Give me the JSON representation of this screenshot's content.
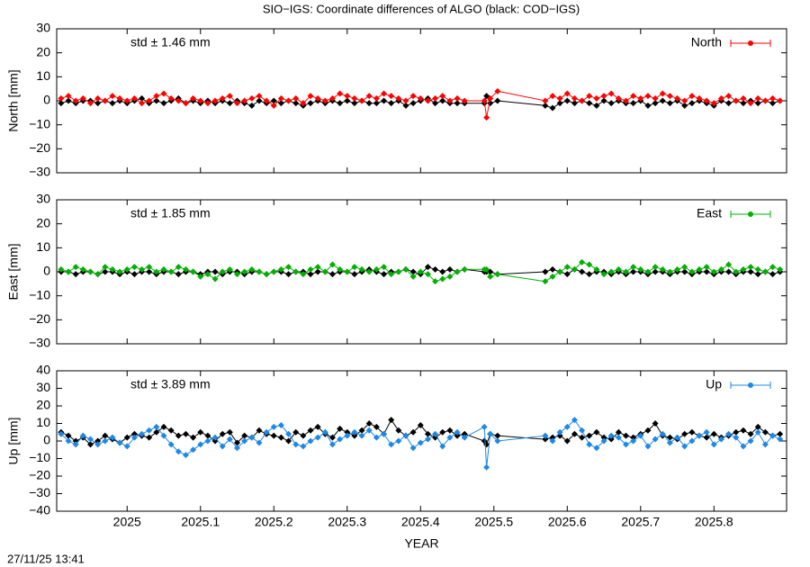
{
  "title": "SIO−IGS: Coordinate differences of ALGO (black: COD−IGS)",
  "timestamp": "27/11/25 13:41",
  "chart_data": [
    {
      "type": "line",
      "ylabel": "North [mm]",
      "annotation": "std ± 1.46 mm",
      "xlim": [
        2024.904,
        2025.899
      ],
      "xticks": [
        2025,
        2025.1,
        2025.2,
        2025.3,
        2025.4,
        2025.5,
        2025.6,
        2025.7,
        2025.8
      ],
      "show_xtick_labels": false,
      "ylim": [
        -30,
        30
      ],
      "yticks": [
        {
          "value": -30,
          "label": "−30"
        },
        {
          "value": -20,
          "label": "−20"
        },
        {
          "value": -10,
          "label": "−10"
        },
        0,
        10,
        20,
        30
      ],
      "x": [
        2024.91,
        2024.92,
        2024.93,
        2024.94,
        2024.95,
        2024.96,
        2024.97,
        2024.98,
        2024.99,
        2025,
        2025.01,
        2025.02,
        2025.03,
        2025.04,
        2025.05,
        2025.06,
        2025.07,
        2025.08,
        2025.09,
        2025.1,
        2025.11,
        2025.12,
        2025.13,
        2025.14,
        2025.15,
        2025.16,
        2025.17,
        2025.18,
        2025.19,
        2025.2,
        2025.21,
        2025.22,
        2025.23,
        2025.24,
        2025.25,
        2025.26,
        2025.27,
        2025.28,
        2025.29,
        2025.3,
        2025.31,
        2025.32,
        2025.33,
        2025.34,
        2025.35,
        2025.36,
        2025.37,
        2025.38,
        2025.39,
        2025.4,
        2025.41,
        2025.42,
        2025.43,
        2025.44,
        2025.45,
        2025.46,
        2025.487,
        2025.49,
        2025.495,
        2025.505,
        2025.57,
        2025.58,
        2025.59,
        2025.6,
        2025.61,
        2025.62,
        2025.63,
        2025.64,
        2025.65,
        2025.66,
        2025.67,
        2025.68,
        2025.69,
        2025.7,
        2025.71,
        2025.72,
        2025.73,
        2025.74,
        2025.75,
        2025.76,
        2025.77,
        2025.78,
        2025.79,
        2025.8,
        2025.81,
        2025.82,
        2025.83,
        2025.84,
        2025.85,
        2025.86,
        2025.87,
        2025.88,
        2025.89
      ],
      "series": [
        {
          "color": "#000000",
          "values": [
            -1,
            0,
            -1,
            0,
            0,
            -1,
            0,
            -1,
            0,
            -1,
            0,
            1,
            -1,
            0,
            -1,
            0,
            1,
            -1,
            0,
            -1,
            0,
            -1,
            0,
            -1,
            0,
            -1,
            -2,
            0,
            -1,
            0,
            -1,
            0,
            -1,
            -2,
            -1,
            0,
            -1,
            0,
            -1,
            0,
            -1,
            0,
            -1,
            -1,
            0,
            -1,
            0,
            -2,
            -1,
            0,
            1,
            -1,
            0,
            -1,
            -1,
            -1,
            -1,
            2,
            -1,
            0,
            -2,
            -3,
            -1,
            0,
            -1,
            0,
            -1,
            -2,
            0,
            -1,
            0,
            -1,
            -1,
            0,
            -2,
            -1,
            0,
            -1,
            0,
            -2,
            -1,
            0,
            -1,
            -2,
            0,
            -1,
            0,
            -1,
            0,
            -1,
            0,
            -1,
            0
          ]
        },
        {
          "name": "North",
          "color": "#ff0000",
          "values": [
            1,
            2,
            0,
            1,
            -1,
            1,
            0,
            2,
            1,
            0,
            1,
            -1,
            0,
            2,
            3,
            1,
            0,
            -1,
            1,
            0,
            -1,
            0,
            1,
            2,
            -1,
            0,
            1,
            2,
            0,
            -2,
            1,
            0,
            1,
            -1,
            2,
            1,
            0,
            1,
            3,
            2,
            1,
            0,
            2,
            1,
            3,
            2,
            1,
            0,
            2,
            1,
            0,
            1,
            2,
            0,
            1,
            0,
            0,
            -7,
            1,
            4,
            0,
            2,
            1,
            3,
            1,
            0,
            2,
            1,
            2,
            3,
            1,
            0,
            2,
            1,
            2,
            1,
            3,
            2,
            1,
            0,
            2,
            1,
            0,
            -1,
            1,
            2,
            0,
            1,
            -1,
            1,
            0,
            1,
            0
          ]
        }
      ]
    },
    {
      "type": "line",
      "ylabel": "East [mm]",
      "annotation": "std ± 1.85 mm",
      "xlim": [
        2024.904,
        2025.899
      ],
      "xticks": [
        2025,
        2025.1,
        2025.2,
        2025.3,
        2025.4,
        2025.5,
        2025.6,
        2025.7,
        2025.8
      ],
      "show_xtick_labels": false,
      "ylim": [
        -30,
        30
      ],
      "yticks": [
        {
          "value": -30,
          "label": "−30"
        },
        {
          "value": -20,
          "label": "−20"
        },
        {
          "value": -10,
          "label": "−10"
        },
        0,
        10,
        20,
        30
      ],
      "x": [
        2024.91,
        2024.92,
        2024.93,
        2024.94,
        2024.95,
        2024.96,
        2024.97,
        2024.98,
        2024.99,
        2025,
        2025.01,
        2025.02,
        2025.03,
        2025.04,
        2025.05,
        2025.06,
        2025.07,
        2025.08,
        2025.09,
        2025.1,
        2025.11,
        2025.12,
        2025.13,
        2025.14,
        2025.15,
        2025.16,
        2025.17,
        2025.18,
        2025.19,
        2025.2,
        2025.21,
        2025.22,
        2025.23,
        2025.24,
        2025.25,
        2025.26,
        2025.27,
        2025.28,
        2025.29,
        2025.3,
        2025.31,
        2025.32,
        2025.33,
        2025.34,
        2025.35,
        2025.36,
        2025.37,
        2025.38,
        2025.39,
        2025.4,
        2025.41,
        2025.42,
        2025.43,
        2025.44,
        2025.45,
        2025.46,
        2025.487,
        2025.49,
        2025.495,
        2025.505,
        2025.57,
        2025.58,
        2025.59,
        2025.6,
        2025.61,
        2025.62,
        2025.63,
        2025.64,
        2025.65,
        2025.66,
        2025.67,
        2025.68,
        2025.69,
        2025.7,
        2025.71,
        2025.72,
        2025.73,
        2025.74,
        2025.75,
        2025.76,
        2025.77,
        2025.78,
        2025.79,
        2025.8,
        2025.81,
        2025.82,
        2025.83,
        2025.84,
        2025.85,
        2025.86,
        2025.87,
        2025.88,
        2025.89
      ],
      "series": [
        {
          "color": "#000000",
          "values": [
            0,
            0,
            -1,
            0,
            0,
            -1,
            0,
            0,
            -1,
            0,
            -1,
            0,
            0,
            -1,
            0,
            0,
            -1,
            0,
            0,
            -1,
            0,
            0,
            -1,
            0,
            0,
            -1,
            0,
            0,
            -1,
            0,
            0,
            -1,
            0,
            0,
            -1,
            0,
            0,
            -1,
            0,
            0,
            -1,
            0,
            1,
            0,
            -1,
            0,
            0,
            1,
            0,
            -1,
            2,
            1,
            0,
            1,
            0,
            1,
            0,
            0,
            0,
            -1,
            0,
            1,
            0,
            -1,
            1,
            0,
            -1,
            0,
            0,
            -1,
            0,
            -1,
            0,
            0,
            -1,
            0,
            0,
            -1,
            0,
            0,
            -1,
            0,
            0,
            -1,
            0,
            0,
            -1,
            0,
            0,
            -1,
            0,
            -1,
            0
          ]
        },
        {
          "name": "East",
          "color": "#00b000",
          "values": [
            1,
            0,
            2,
            1,
            0,
            -1,
            2,
            1,
            0,
            1,
            2,
            1,
            2,
            0,
            1,
            0,
            2,
            1,
            0,
            -2,
            -1,
            -3,
            0,
            1,
            -1,
            0,
            1,
            0,
            -1,
            0,
            1,
            2,
            0,
            -1,
            1,
            2,
            0,
            3,
            1,
            0,
            2,
            1,
            0,
            1,
            2,
            -1,
            0,
            1,
            -2,
            0,
            -1,
            -4,
            -3,
            -2,
            0,
            1,
            1,
            1,
            -2,
            -1,
            -4,
            -2,
            0,
            2,
            1,
            4,
            3,
            1,
            -1,
            0,
            1,
            0,
            2,
            1,
            0,
            2,
            1,
            0,
            1,
            2,
            0,
            1,
            2,
            0,
            1,
            3,
            0,
            1,
            2,
            1,
            0,
            2,
            1
          ]
        }
      ]
    },
    {
      "type": "line",
      "ylabel": "Up [mm]",
      "annotation": "std ± 3.89 mm",
      "xlabel": "YEAR",
      "xlim": [
        2024.904,
        2025.899
      ],
      "xticks": [
        2025,
        2025.1,
        2025.2,
        2025.3,
        2025.4,
        2025.5,
        2025.6,
        2025.7,
        2025.8
      ],
      "show_xtick_labels": true,
      "ylim": [
        -40,
        40
      ],
      "yticks": [
        {
          "value": -40,
          "label": "−40"
        },
        {
          "value": -30,
          "label": "−30"
        },
        {
          "value": -20,
          "label": "−20"
        },
        {
          "value": -10,
          "label": "−10"
        },
        0,
        10,
        20,
        30,
        40
      ],
      "x": [
        2024.91,
        2024.92,
        2024.93,
        2024.94,
        2024.95,
        2024.96,
        2024.97,
        2024.98,
        2024.99,
        2025,
        2025.01,
        2025.02,
        2025.03,
        2025.04,
        2025.05,
        2025.06,
        2025.07,
        2025.08,
        2025.09,
        2025.1,
        2025.11,
        2025.12,
        2025.13,
        2025.14,
        2025.15,
        2025.16,
        2025.17,
        2025.18,
        2025.19,
        2025.2,
        2025.21,
        2025.22,
        2025.23,
        2025.24,
        2025.25,
        2025.26,
        2025.27,
        2025.28,
        2025.29,
        2025.3,
        2025.31,
        2025.32,
        2025.33,
        2025.34,
        2025.35,
        2025.36,
        2025.37,
        2025.38,
        2025.39,
        2025.4,
        2025.41,
        2025.42,
        2025.43,
        2025.44,
        2025.45,
        2025.46,
        2025.487,
        2025.49,
        2025.495,
        2025.505,
        2025.57,
        2025.58,
        2025.59,
        2025.6,
        2025.61,
        2025.62,
        2025.63,
        2025.64,
        2025.65,
        2025.66,
        2025.67,
        2025.68,
        2025.69,
        2025.7,
        2025.71,
        2025.72,
        2025.73,
        2025.74,
        2025.75,
        2025.76,
        2025.77,
        2025.78,
        2025.79,
        2025.8,
        2025.81,
        2025.82,
        2025.83,
        2025.84,
        2025.85,
        2025.86,
        2025.87,
        2025.88,
        2025.89
      ],
      "series": [
        {
          "color": "#000000",
          "values": [
            5,
            3,
            0,
            2,
            -2,
            0,
            3,
            1,
            -1,
            2,
            4,
            3,
            2,
            5,
            8,
            6,
            3,
            4,
            2,
            5,
            3,
            0,
            4,
            5,
            -1,
            3,
            2,
            6,
            4,
            3,
            2,
            0,
            5,
            3,
            6,
            8,
            4,
            2,
            7,
            5,
            3,
            6,
            10,
            8,
            4,
            12,
            6,
            3,
            5,
            9,
            4,
            2,
            5,
            6,
            3,
            4,
            0,
            -2,
            4,
            3,
            1,
            2,
            3,
            0,
            4,
            2,
            3,
            5,
            2,
            1,
            5,
            3,
            2,
            4,
            6,
            10,
            3,
            2,
            1,
            4,
            5,
            3,
            2,
            4,
            2,
            3,
            5,
            6,
            4,
            8,
            5,
            3,
            4
          ]
        },
        {
          "name": "Up",
          "color": "#1e88e5",
          "values": [
            4,
            0,
            -2,
            3,
            1,
            -2,
            0,
            2,
            -1,
            -3,
            2,
            4,
            6,
            8,
            3,
            -2,
            -6,
            -8,
            -5,
            -2,
            0,
            2,
            -3,
            1,
            -4,
            0,
            2,
            -1,
            5,
            8,
            9,
            4,
            -2,
            -3,
            0,
            2,
            5,
            -2,
            1,
            3,
            5,
            3,
            6,
            2,
            4,
            -2,
            0,
            3,
            -4,
            -1,
            1,
            4,
            -3,
            2,
            5,
            2,
            8,
            -15,
            4,
            0,
            3,
            0,
            5,
            8,
            12,
            6,
            -2,
            -4,
            0,
            3,
            2,
            -2,
            0,
            3,
            -3,
            1,
            4,
            -1,
            2,
            -3,
            0,
            3,
            5,
            -2,
            1,
            4,
            2,
            -3,
            0,
            5,
            -2,
            3,
            1
          ]
        }
      ]
    }
  ]
}
